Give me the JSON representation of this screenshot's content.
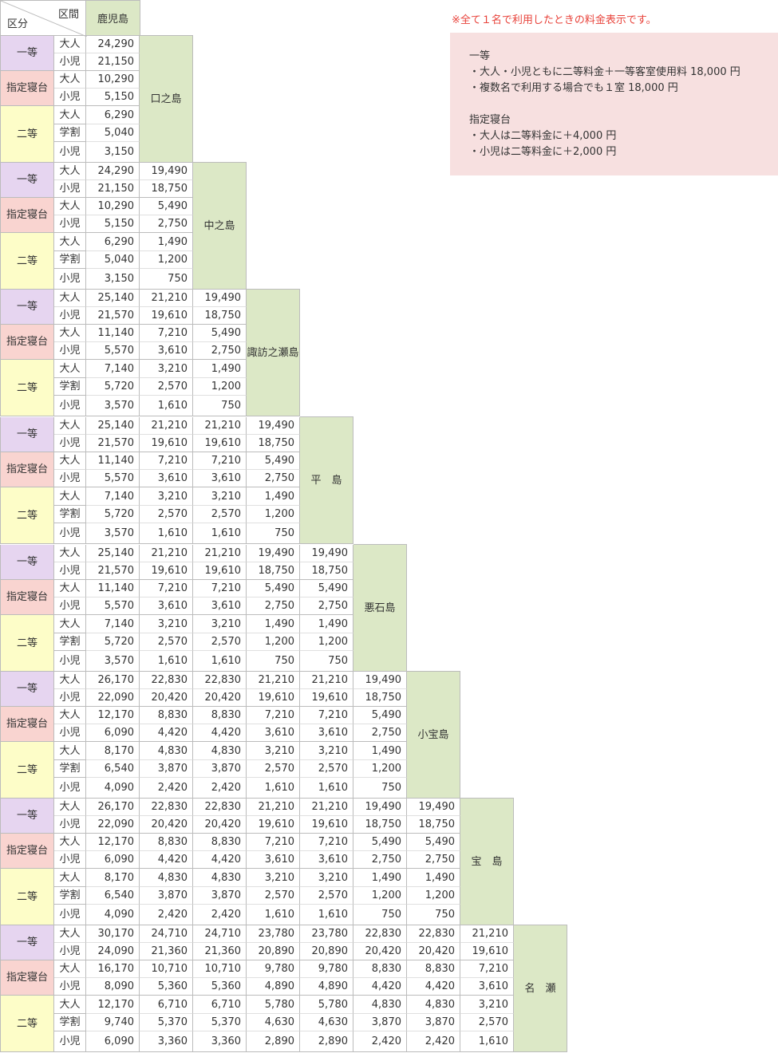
{
  "header": {
    "section_label": "区間",
    "class_label": "区分",
    "origin": "鹿児島"
  },
  "notes": {
    "top": "※全て１名で利用したときの料金表示です。",
    "first_title": "一等",
    "first_lines": [
      "・大人・小児ともに二等料金＋一等客室使用料 18,000 円",
      "・複数名で利用する場合でも１室 18,000 円"
    ],
    "berth_title": "指定寝台",
    "berth_lines": [
      "・大人は二等料金に＋4,000 円",
      "・小児は二等料金に＋2,000 円"
    ]
  },
  "class_names": {
    "first": "一等",
    "berth": "指定寝台",
    "second": "二等"
  },
  "sub_names": {
    "adult": "大人",
    "child": "小児",
    "student": "学割"
  },
  "ports": [
    "口之島",
    "中之島",
    "諏訪之瀬島",
    "平　島",
    "悪石島",
    "小宝島",
    "宝　島",
    "名　瀬"
  ],
  "fares": [
    [
      [
        "24,290"
      ],
      [
        "21,150"
      ],
      [
        "10,290"
      ],
      [
        "5,150"
      ],
      [
        "6,290"
      ],
      [
        "5,040"
      ],
      [
        "3,150"
      ]
    ],
    [
      [
        "24,290",
        "19,490"
      ],
      [
        "21,150",
        "18,750"
      ],
      [
        "10,290",
        "5,490"
      ],
      [
        "5,150",
        "2,750"
      ],
      [
        "6,290",
        "1,490"
      ],
      [
        "5,040",
        "1,200"
      ],
      [
        "3,150",
        "750"
      ]
    ],
    [
      [
        "25,140",
        "21,210",
        "19,490"
      ],
      [
        "21,570",
        "19,610",
        "18,750"
      ],
      [
        "11,140",
        "7,210",
        "5,490"
      ],
      [
        "5,570",
        "3,610",
        "2,750"
      ],
      [
        "7,140",
        "3,210",
        "1,490"
      ],
      [
        "5,720",
        "2,570",
        "1,200"
      ],
      [
        "3,570",
        "1,610",
        "750"
      ]
    ],
    [
      [
        "25,140",
        "21,210",
        "21,210",
        "19,490"
      ],
      [
        "21,570",
        "19,610",
        "19,610",
        "18,750"
      ],
      [
        "11,140",
        "7,210",
        "7,210",
        "5,490"
      ],
      [
        "5,570",
        "3,610",
        "3,610",
        "2,750"
      ],
      [
        "7,140",
        "3,210",
        "3,210",
        "1,490"
      ],
      [
        "5,720",
        "2,570",
        "2,570",
        "1,200"
      ],
      [
        "3,570",
        "1,610",
        "1,610",
        "750"
      ]
    ],
    [
      [
        "25,140",
        "21,210",
        "21,210",
        "19,490",
        "19,490"
      ],
      [
        "21,570",
        "19,610",
        "19,610",
        "18,750",
        "18,750"
      ],
      [
        "11,140",
        "7,210",
        "7,210",
        "5,490",
        "5,490"
      ],
      [
        "5,570",
        "3,610",
        "3,610",
        "2,750",
        "2,750"
      ],
      [
        "7,140",
        "3,210",
        "3,210",
        "1,490",
        "1,490"
      ],
      [
        "5,720",
        "2,570",
        "2,570",
        "1,200",
        "1,200"
      ],
      [
        "3,570",
        "1,610",
        "1,610",
        "750",
        "750"
      ]
    ],
    [
      [
        "26,170",
        "22,830",
        "22,830",
        "21,210",
        "21,210",
        "19,490"
      ],
      [
        "22,090",
        "20,420",
        "20,420",
        "19,610",
        "19,610",
        "18,750"
      ],
      [
        "12,170",
        "8,830",
        "8,830",
        "7,210",
        "7,210",
        "5,490"
      ],
      [
        "6,090",
        "4,420",
        "4,420",
        "3,610",
        "3,610",
        "2,750"
      ],
      [
        "8,170",
        "4,830",
        "4,830",
        "3,210",
        "3,210",
        "1,490"
      ],
      [
        "6,540",
        "3,870",
        "3,870",
        "2,570",
        "2,570",
        "1,200"
      ],
      [
        "4,090",
        "2,420",
        "2,420",
        "1,610",
        "1,610",
        "750"
      ]
    ],
    [
      [
        "26,170",
        "22,830",
        "22,830",
        "21,210",
        "21,210",
        "19,490",
        "19,490"
      ],
      [
        "22,090",
        "20,420",
        "20,420",
        "19,610",
        "19,610",
        "18,750",
        "18,750"
      ],
      [
        "12,170",
        "8,830",
        "8,830",
        "7,210",
        "7,210",
        "5,490",
        "5,490"
      ],
      [
        "6,090",
        "4,420",
        "4,420",
        "3,610",
        "3,610",
        "2,750",
        "2,750"
      ],
      [
        "8,170",
        "4,830",
        "4,830",
        "3,210",
        "3,210",
        "1,490",
        "1,490"
      ],
      [
        "6,540",
        "3,870",
        "3,870",
        "2,570",
        "2,570",
        "1,200",
        "1,200"
      ],
      [
        "4,090",
        "2,420",
        "2,420",
        "1,610",
        "1,610",
        "750",
        "750"
      ]
    ],
    [
      [
        "30,170",
        "24,710",
        "24,710",
        "23,780",
        "23,780",
        "22,830",
        "22,830",
        "21,210"
      ],
      [
        "24,090",
        "21,360",
        "21,360",
        "20,890",
        "20,890",
        "20,420",
        "20,420",
        "19,610"
      ],
      [
        "16,170",
        "10,710",
        "10,710",
        "9,780",
        "9,780",
        "8,830",
        "8,830",
        "7,210"
      ],
      [
        "8,090",
        "5,360",
        "5,360",
        "4,890",
        "4,890",
        "4,420",
        "4,420",
        "3,610"
      ],
      [
        "12,170",
        "6,710",
        "6,710",
        "5,780",
        "5,780",
        "4,830",
        "4,830",
        "3,210"
      ],
      [
        "9,740",
        "5,370",
        "5,370",
        "4,630",
        "4,630",
        "3,870",
        "3,870",
        "2,570"
      ],
      [
        "6,090",
        "3,360",
        "3,360",
        "2,890",
        "2,890",
        "2,420",
        "2,420",
        "1,610"
      ]
    ]
  ]
}
